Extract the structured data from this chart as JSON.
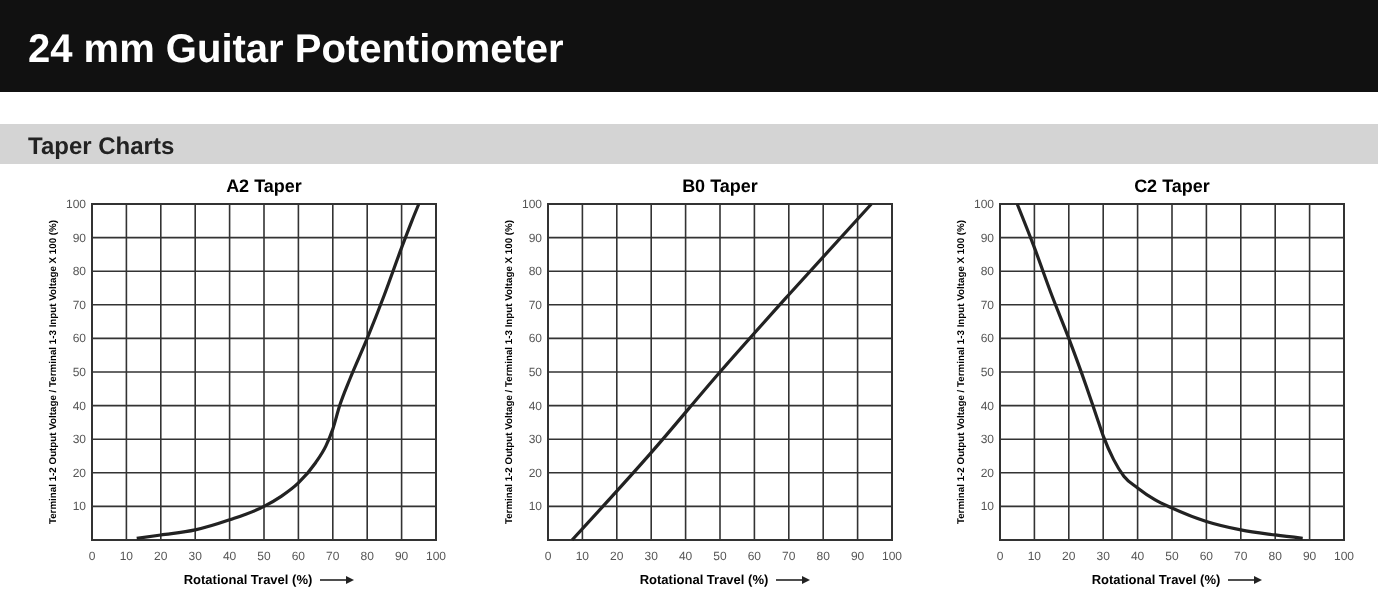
{
  "chart_data": [
    {
      "type": "other",
      "title": "24 mm Guitar Potentiometer",
      "subtitle": "Taper Charts"
    },
    {
      "type": "line",
      "title": "A2 Taper",
      "xlabel": "Rotational Travel (%)",
      "ylabel": "Terminal 1-2 Output Voltage / Terminal 1-3 Input Voltage X 100 (%)",
      "xlim": [
        0,
        100
      ],
      "ylim": [
        0,
        100
      ],
      "xticks": [
        0,
        10,
        20,
        30,
        40,
        50,
        60,
        70,
        80,
        90,
        100
      ],
      "yticks": [
        10,
        20,
        30,
        40,
        50,
        60,
        70,
        80,
        90,
        100
      ],
      "grid": true,
      "line_style": "solid",
      "marker": "none",
      "series": [
        {
          "color": "#222222",
          "x": [
            13,
            20,
            30,
            40,
            50,
            55,
            60,
            65,
            68,
            70,
            72,
            75,
            80,
            85,
            90,
            93,
            95
          ],
          "values": [
            0.5,
            1.5,
            3,
            6,
            10,
            13,
            17,
            23,
            28,
            33,
            40,
            48,
            60,
            73,
            87,
            95,
            100
          ]
        }
      ]
    },
    {
      "type": "line",
      "title": "B0 Taper",
      "xlabel": "Rotational Travel (%)",
      "ylabel": "Terminal 1-2 Output Voltage / Terminal 1-3 Input Voltage X 100 (%)",
      "xlim": [
        0,
        100
      ],
      "ylim": [
        0,
        100
      ],
      "xticks": [
        0,
        10,
        20,
        30,
        40,
        50,
        60,
        70,
        80,
        90,
        100
      ],
      "yticks": [
        10,
        20,
        30,
        40,
        50,
        60,
        70,
        80,
        90,
        100
      ],
      "grid": true,
      "line_style": "solid",
      "marker": "none",
      "series": [
        {
          "color": "#222222",
          "x": [
            7,
            30,
            50,
            70,
            94
          ],
          "values": [
            0,
            26,
            50,
            73,
            100
          ]
        }
      ]
    },
    {
      "type": "line",
      "title": "C2 Taper",
      "xlabel": "Rotational Travel (%)",
      "ylabel": "Terminal 1-2 Output Voltage / Terminal 1-3 Input Voltage X 100 (%)",
      "xlim": [
        0,
        100
      ],
      "ylim": [
        0,
        100
      ],
      "xticks": [
        0,
        10,
        20,
        30,
        40,
        50,
        60,
        70,
        80,
        90,
        100
      ],
      "yticks": [
        10,
        20,
        30,
        40,
        50,
        60,
        70,
        80,
        90,
        100
      ],
      "grid": true,
      "line_style": "solid",
      "marker": "none",
      "series": [
        {
          "color": "#222222",
          "x": [
            5,
            10,
            15,
            20,
            25,
            28,
            30,
            33,
            36,
            40,
            45,
            50,
            60,
            70,
            80,
            88
          ],
          "values": [
            100,
            87,
            73,
            60,
            46,
            37,
            31,
            24,
            19,
            15.5,
            12,
            9.5,
            5.5,
            3,
            1.5,
            0.5
          ]
        }
      ]
    }
  ]
}
